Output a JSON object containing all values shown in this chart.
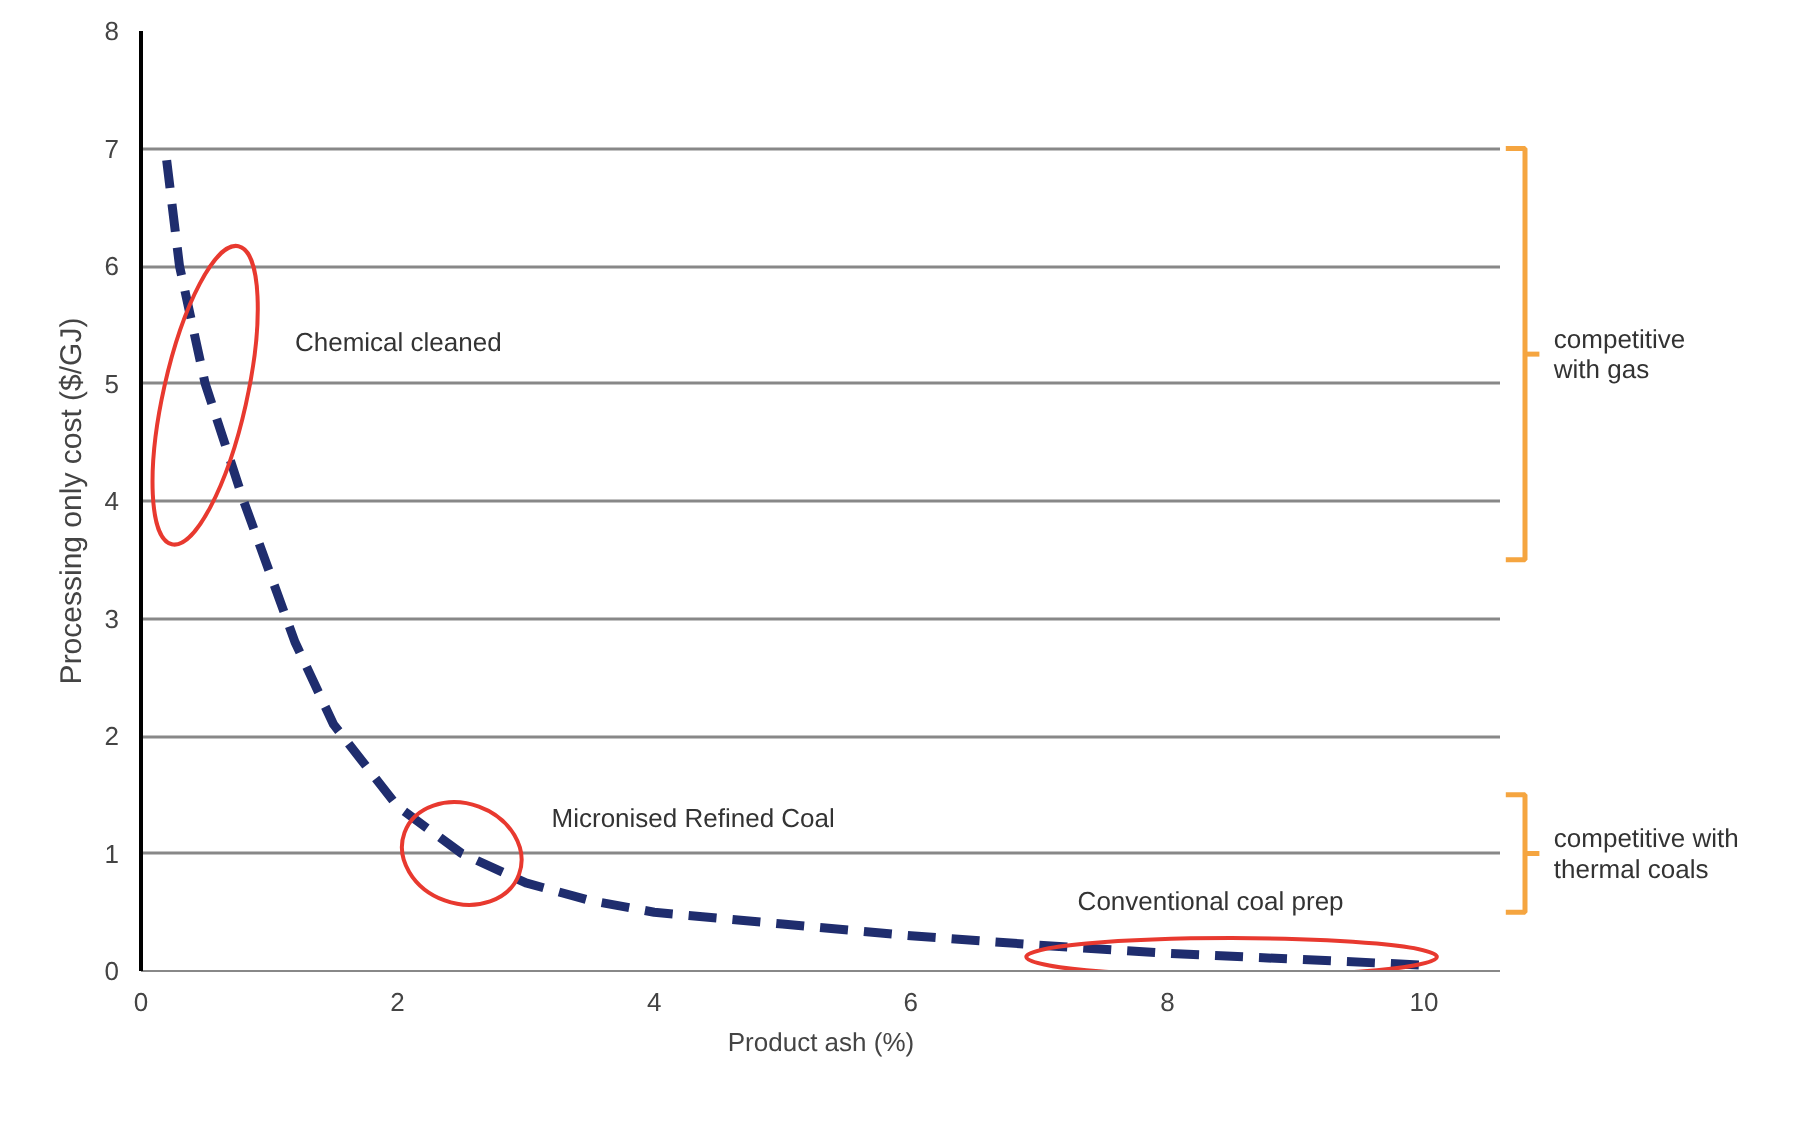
{
  "chart_data": {
    "type": "line",
    "xlabel": "Product ash (%)",
    "ylabel": "Processing only cost ($/GJ)",
    "xlim": [
      0,
      10.6
    ],
    "xticks": [
      0,
      2,
      4,
      6,
      8,
      10
    ],
    "ylim": [
      0,
      8
    ],
    "yticks": [
      0,
      1,
      2,
      3,
      4,
      5,
      6,
      7,
      8
    ],
    "grid": "y",
    "line_style": "dashed",
    "series": [
      {
        "color": "#1f2d6e",
        "x": [
          0.2,
          0.3,
          0.5,
          0.8,
          1.0,
          1.2,
          1.5,
          2.0,
          2.5,
          3.0,
          3.5,
          4.0,
          5.0,
          6.0,
          7.0,
          8.0,
          9.0,
          10.0
        ],
        "values": [
          6.9,
          6.0,
          5.0,
          4.0,
          3.4,
          2.8,
          2.1,
          1.4,
          1.0,
          0.75,
          0.6,
          0.5,
          0.4,
          0.3,
          0.22,
          0.15,
          0.1,
          0.05
        ]
      }
    ],
    "annotations": [
      "Chemical cleaned",
      "Micronised Refined Coal",
      "Conventional coal prep",
      "competitive\nwith gas",
      "competitive with\nthermal coals"
    ]
  }
}
